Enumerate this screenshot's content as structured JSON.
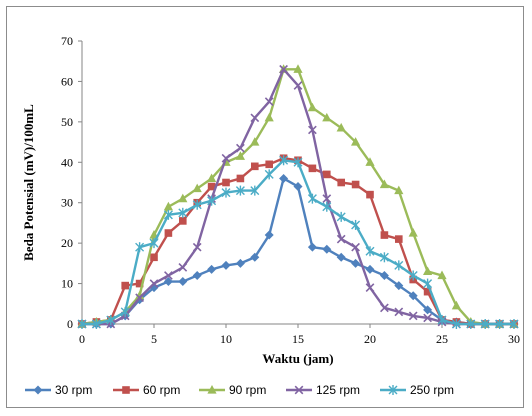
{
  "chart_data": {
    "type": "line",
    "xlabel": "Waktu (jam)",
    "ylabel": "Beda Potensial (mV)/100mL",
    "xlim": [
      0,
      30
    ],
    "ylim": [
      0,
      70
    ],
    "xticks": [
      "0",
      "5",
      "10",
      "15",
      "20",
      "25",
      "30"
    ],
    "yticks": [
      "0",
      "10",
      "20",
      "30",
      "40",
      "50",
      "60",
      "70"
    ],
    "grid": false,
    "legend_position": "bottom",
    "x": [
      0,
      1,
      2,
      3,
      4,
      5,
      6,
      7,
      8,
      9,
      10,
      11,
      12,
      13,
      14,
      15,
      16,
      17,
      18,
      19,
      20,
      21,
      22,
      23,
      24,
      25,
      26,
      27,
      28,
      29,
      30
    ],
    "series": [
      {
        "name": "30 rpm",
        "color": "#4F81BD",
        "marker": "diamond",
        "values": [
          0,
          0,
          0,
          2,
          6,
          9,
          10.5,
          10.5,
          12,
          13.5,
          14.5,
          15,
          16.5,
          22,
          36,
          34,
          19,
          18.5,
          16.5,
          15,
          13.5,
          12,
          9.5,
          7,
          3.5,
          1,
          0.5,
          0,
          0,
          0,
          0
        ]
      },
      {
        "name": "60 rpm",
        "color": "#C0504D",
        "marker": "square",
        "values": [
          0,
          0.5,
          1,
          9.5,
          10,
          16.5,
          22.5,
          25.5,
          30,
          34,
          35,
          36,
          39,
          39.5,
          41,
          40.5,
          38.5,
          37,
          35,
          34.5,
          32,
          22,
          21,
          11,
          8,
          1,
          0.5,
          0,
          0,
          0,
          0
        ]
      },
      {
        "name": "90 rpm",
        "color": "#9BBB59",
        "marker": "triangle",
        "values": [
          0,
          0.5,
          1,
          3,
          7,
          22,
          29,
          31,
          33.5,
          36,
          40,
          41.5,
          45,
          51,
          63,
          63,
          53.5,
          51,
          48.5,
          45,
          40,
          34.5,
          33,
          22.5,
          13,
          12,
          4.5,
          0.5,
          0,
          0,
          0
        ]
      },
      {
        "name": "125 rpm",
        "color": "#8064A2",
        "marker": "x",
        "values": [
          0,
          0,
          0,
          2,
          6.5,
          10,
          12,
          14,
          19,
          31,
          41,
          43.5,
          51,
          55,
          63,
          59,
          48,
          31,
          21,
          19,
          9,
          4,
          3,
          2,
          1.5,
          0.5,
          0,
          0,
          0,
          0,
          0
        ]
      },
      {
        "name": "250 rpm",
        "color": "#4BACC6",
        "marker": "asterisk",
        "values": [
          0,
          0,
          1,
          3,
          19,
          20,
          27,
          27.5,
          29.5,
          30.5,
          32.5,
          33,
          33,
          37,
          40.5,
          40,
          31,
          29,
          26.5,
          24.5,
          18,
          16.5,
          14.5,
          12,
          10,
          1,
          0,
          0,
          0,
          0,
          0
        ]
      }
    ]
  }
}
